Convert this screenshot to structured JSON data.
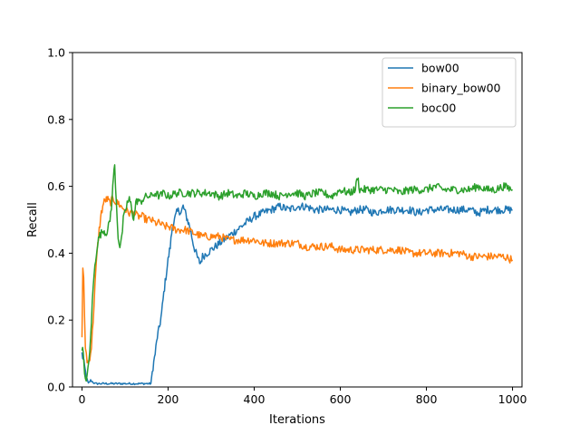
{
  "chart_data": {
    "type": "line",
    "title": "",
    "xlabel": "Iterations",
    "ylabel": "Recall",
    "xlim": [
      -22,
      1022
    ],
    "ylim": [
      0.0,
      1.0
    ],
    "xticks": [
      0,
      200,
      400,
      600,
      800,
      1000
    ],
    "xtick_labels": [
      "0",
      "200",
      "400",
      "600",
      "800",
      "1000"
    ],
    "yticks": [
      0.0,
      0.2,
      0.4,
      0.6,
      0.8,
      1.0
    ],
    "ytick_labels": [
      "0.0",
      "0.2",
      "0.4",
      "0.6",
      "0.8",
      "1.0"
    ],
    "grid": false,
    "legend_position": "top-right",
    "series": [
      {
        "name": "bow00",
        "color": "#1f77b4",
        "x": [
          0,
          3,
          6,
          10,
          15,
          20,
          30,
          40,
          60,
          80,
          100,
          120,
          140,
          155,
          160,
          165,
          170,
          175,
          180,
          185,
          190,
          195,
          200,
          205,
          210,
          215,
          220,
          225,
          230,
          235,
          240,
          245,
          250,
          255,
          260,
          265,
          270,
          275,
          280,
          290,
          300,
          310,
          320,
          330,
          340,
          350,
          360,
          370,
          380,
          390,
          400,
          420,
          440,
          460,
          480,
          500,
          520,
          540,
          560,
          580,
          600,
          620,
          640,
          660,
          680,
          700,
          720,
          740,
          760,
          780,
          800,
          820,
          840,
          860,
          880,
          900,
          920,
          940,
          960,
          980,
          1000
        ],
        "y": [
          0.1,
          0.08,
          0.06,
          0.03,
          0.01,
          0.02,
          0.01,
          0.01,
          0.01,
          0.01,
          0.01,
          0.01,
          0.01,
          0.01,
          0.01,
          0.06,
          0.1,
          0.15,
          0.18,
          0.22,
          0.28,
          0.33,
          0.38,
          0.42,
          0.48,
          0.5,
          0.52,
          0.53,
          0.52,
          0.54,
          0.52,
          0.5,
          0.48,
          0.45,
          0.42,
          0.4,
          0.38,
          0.37,
          0.39,
          0.4,
          0.41,
          0.42,
          0.43,
          0.44,
          0.45,
          0.46,
          0.47,
          0.48,
          0.49,
          0.5,
          0.51,
          0.52,
          0.53,
          0.54,
          0.53,
          0.54,
          0.54,
          0.53,
          0.53,
          0.53,
          0.53,
          0.52,
          0.53,
          0.53,
          0.52,
          0.53,
          0.53,
          0.53,
          0.53,
          0.52,
          0.53,
          0.53,
          0.53,
          0.53,
          0.53,
          0.53,
          0.52,
          0.53,
          0.53,
          0.53,
          0.53
        ]
      },
      {
        "name": "binary_bow00",
        "color": "#ff7f0e",
        "x": [
          0,
          2,
          4,
          6,
          8,
          10,
          12,
          15,
          18,
          22,
          26,
          30,
          35,
          40,
          45,
          50,
          55,
          60,
          65,
          70,
          75,
          80,
          85,
          90,
          100,
          110,
          120,
          130,
          140,
          150,
          160,
          170,
          180,
          190,
          200,
          220,
          240,
          260,
          280,
          300,
          320,
          340,
          360,
          380,
          400,
          420,
          440,
          460,
          480,
          500,
          520,
          540,
          560,
          580,
          600,
          620,
          640,
          660,
          680,
          700,
          720,
          740,
          760,
          780,
          800,
          820,
          840,
          860,
          880,
          900,
          920,
          940,
          960,
          980,
          1000
        ],
        "y": [
          0.15,
          0.36,
          0.32,
          0.2,
          0.12,
          0.1,
          0.08,
          0.07,
          0.09,
          0.12,
          0.2,
          0.3,
          0.4,
          0.47,
          0.52,
          0.55,
          0.56,
          0.56,
          0.55,
          0.56,
          0.56,
          0.55,
          0.55,
          0.54,
          0.53,
          0.52,
          0.52,
          0.51,
          0.51,
          0.5,
          0.5,
          0.49,
          0.49,
          0.48,
          0.48,
          0.47,
          0.47,
          0.46,
          0.45,
          0.45,
          0.45,
          0.44,
          0.44,
          0.44,
          0.44,
          0.43,
          0.43,
          0.43,
          0.43,
          0.43,
          0.42,
          0.42,
          0.42,
          0.42,
          0.41,
          0.41,
          0.41,
          0.41,
          0.41,
          0.41,
          0.41,
          0.41,
          0.4,
          0.4,
          0.4,
          0.4,
          0.4,
          0.4,
          0.4,
          0.39,
          0.39,
          0.39,
          0.39,
          0.39,
          0.38
        ]
      },
      {
        "name": "boc00",
        "color": "#2ca02c",
        "x": [
          0,
          3,
          6,
          10,
          14,
          18,
          22,
          26,
          30,
          35,
          40,
          45,
          50,
          55,
          60,
          65,
          70,
          73,
          76,
          80,
          84,
          88,
          92,
          96,
          100,
          105,
          110,
          115,
          120,
          125,
          130,
          135,
          140,
          150,
          160,
          170,
          180,
          190,
          200,
          220,
          240,
          260,
          280,
          300,
          320,
          340,
          360,
          380,
          400,
          420,
          440,
          460,
          480,
          500,
          520,
          540,
          560,
          580,
          600,
          620,
          635,
          640,
          645,
          660,
          680,
          700,
          720,
          740,
          760,
          780,
          800,
          820,
          840,
          860,
          880,
          900,
          920,
          940,
          960,
          980,
          1000
        ],
        "y": [
          0.12,
          0.1,
          0.03,
          0.02,
          0.05,
          0.1,
          0.2,
          0.3,
          0.36,
          0.42,
          0.45,
          0.46,
          0.47,
          0.46,
          0.47,
          0.5,
          0.56,
          0.63,
          0.66,
          0.55,
          0.45,
          0.42,
          0.44,
          0.5,
          0.52,
          0.55,
          0.56,
          0.54,
          0.5,
          0.55,
          0.56,
          0.55,
          0.56,
          0.57,
          0.57,
          0.58,
          0.57,
          0.58,
          0.57,
          0.58,
          0.58,
          0.58,
          0.58,
          0.58,
          0.57,
          0.58,
          0.57,
          0.58,
          0.57,
          0.58,
          0.58,
          0.57,
          0.58,
          0.58,
          0.57,
          0.58,
          0.58,
          0.57,
          0.59,
          0.58,
          0.59,
          0.63,
          0.59,
          0.59,
          0.59,
          0.59,
          0.59,
          0.58,
          0.59,
          0.59,
          0.59,
          0.6,
          0.59,
          0.59,
          0.59,
          0.59,
          0.6,
          0.59,
          0.59,
          0.6,
          0.59
        ]
      }
    ]
  }
}
